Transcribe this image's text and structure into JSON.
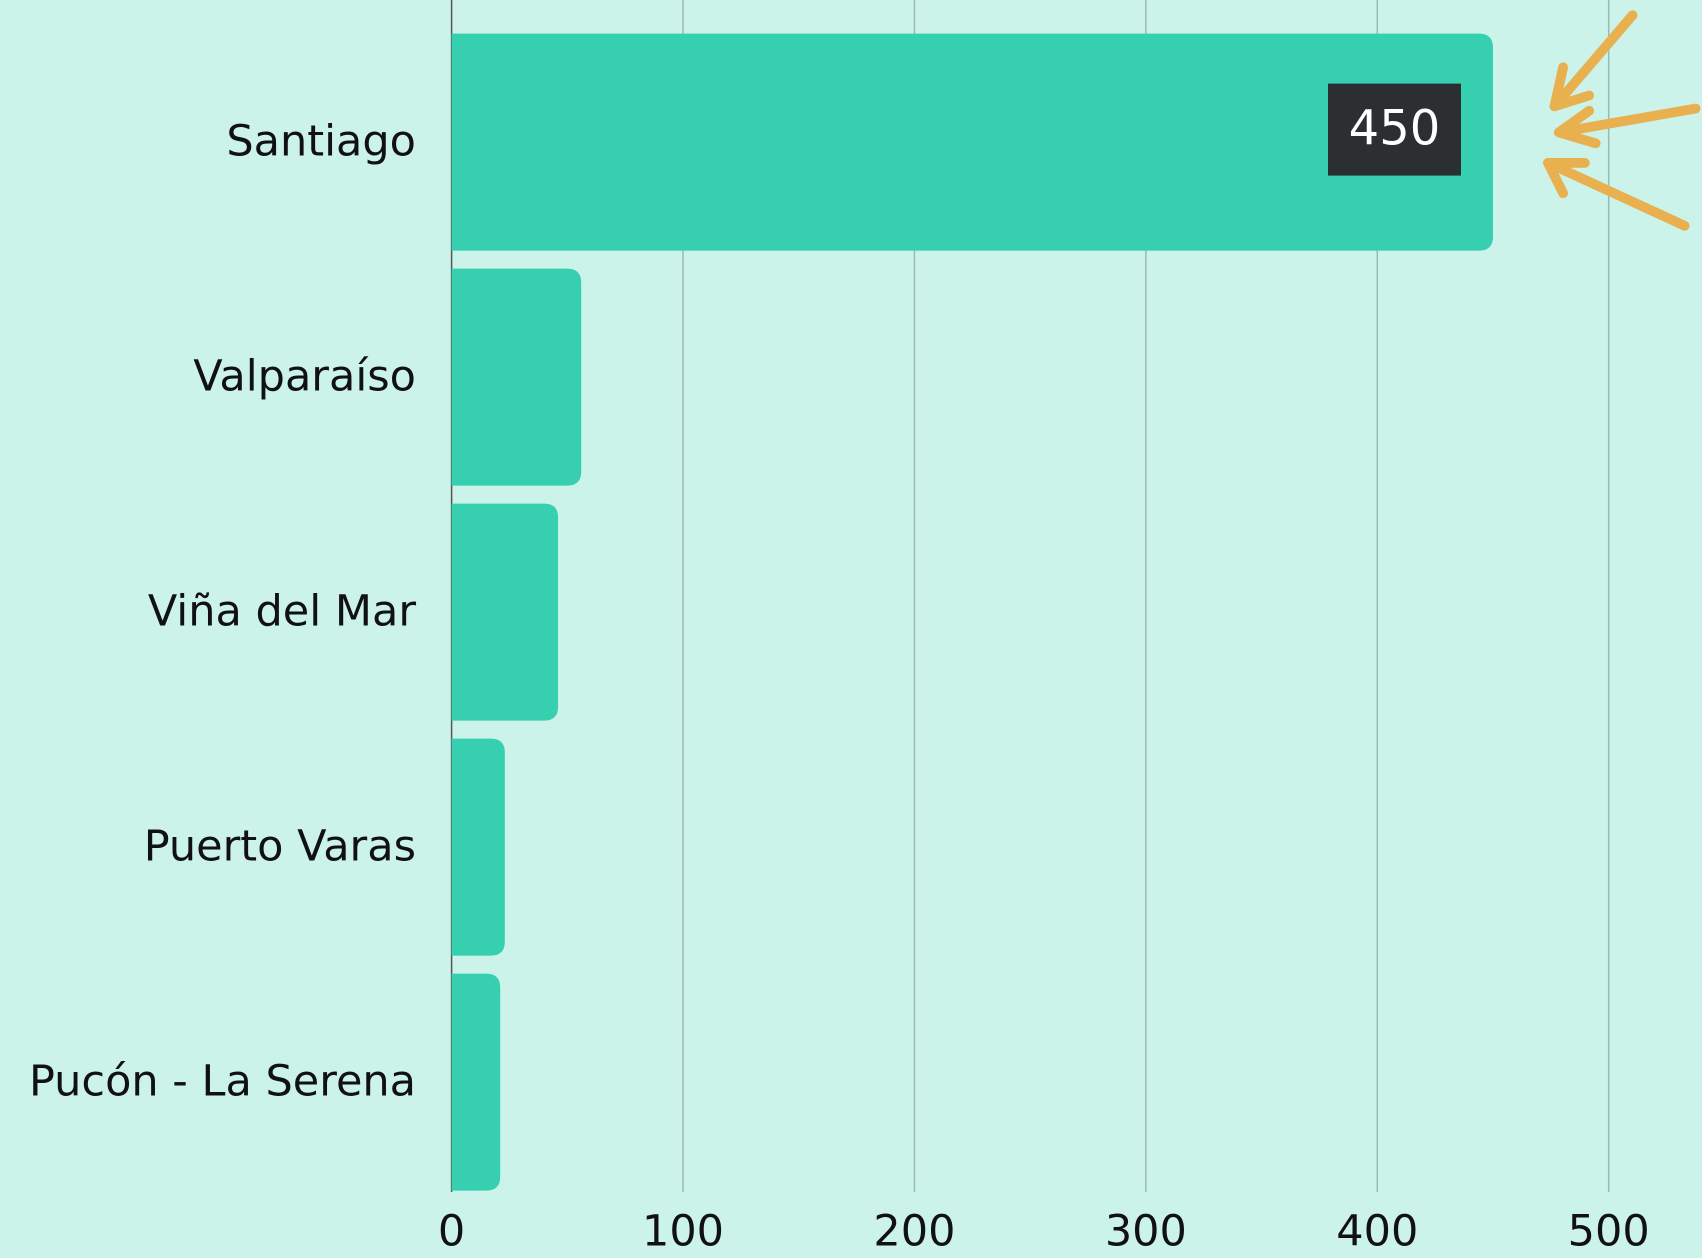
{
  "chart_data": {
    "type": "bar",
    "orientation": "horizontal",
    "categories": [
      "Santiago",
      "Valparaíso",
      "Viña del Mar",
      "Puerto Varas",
      "Pucón - La Serena"
    ],
    "values": [
      450,
      56,
      46,
      23,
      21
    ],
    "value_labels": [
      "450",
      null,
      null,
      null,
      null
    ],
    "color": "#36cfaf",
    "xlim": [
      0,
      500
    ],
    "xticks": [
      0,
      100,
      200,
      300,
      400,
      500
    ],
    "grid": true
  }
}
